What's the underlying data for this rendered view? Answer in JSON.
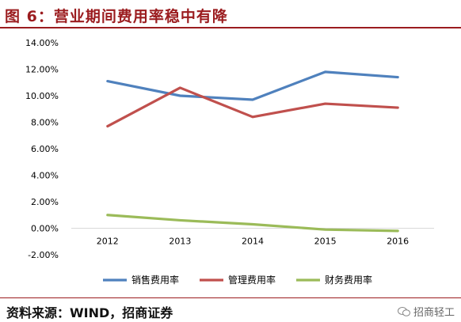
{
  "figure": {
    "title": "图 6：营业期间费用率稳中有降",
    "source": "资料来源：WIND，招商证券",
    "watermark": "招商轻工"
  },
  "chart_data": {
    "type": "line",
    "title": "",
    "xlabel": "",
    "ylabel": "",
    "x": [
      "2012",
      "2013",
      "2014",
      "2015",
      "2016"
    ],
    "ylim": [
      -0.02,
      0.14
    ],
    "yticks": [
      "14.00%",
      "12.00%",
      "10.00%",
      "8.00%",
      "6.00%",
      "4.00%",
      "2.00%",
      "0.00%",
      "-2.00%"
    ],
    "ytick_values": [
      0.14,
      0.12,
      0.1,
      0.08,
      0.06,
      0.04,
      0.02,
      0.0,
      -0.02
    ],
    "grid": false,
    "legend_position": "bottom",
    "series": [
      {
        "name": "销售费用率",
        "color": "#4f81bd",
        "values": [
          0.111,
          0.1,
          0.097,
          0.118,
          0.114
        ]
      },
      {
        "name": "管理费用率",
        "color": "#c0504d",
        "values": [
          0.077,
          0.106,
          0.084,
          0.094,
          0.091
        ]
      },
      {
        "name": "财务费用率",
        "color": "#9bbb59",
        "values": [
          0.01,
          0.006,
          0.003,
          -0.001,
          -0.002
        ]
      }
    ]
  }
}
